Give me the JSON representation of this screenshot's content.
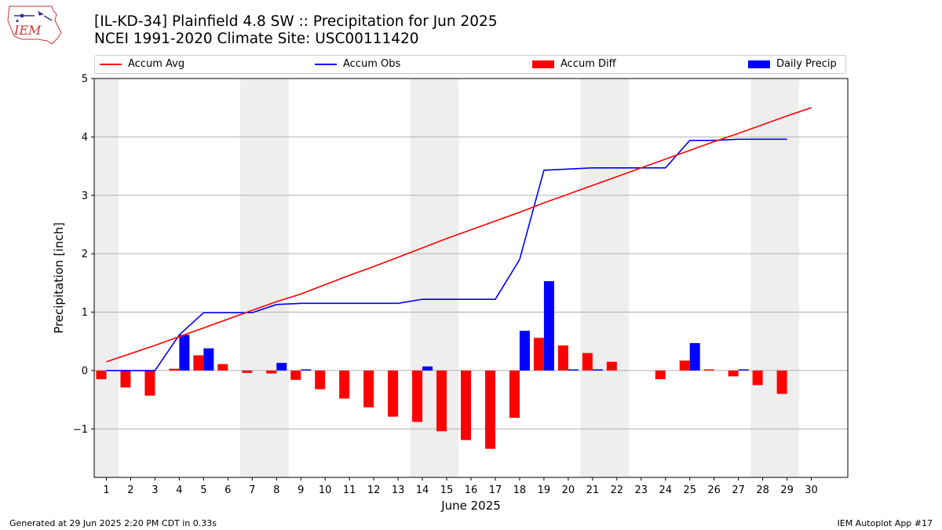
{
  "header": {
    "title_line1": "[IL-KD-34] Plainfield 4.8 SW :: Precipitation for Jun 2025",
    "title_line2": "NCEI 1991-2020 Climate Site: USC00111420"
  },
  "logo": {
    "text": "IEM"
  },
  "footer": {
    "left": "Generated at 29 Jun 2025 2:20 PM CDT in 0.33s",
    "right": "IEM Autoplot App #17"
  },
  "colors": {
    "avg": "#ff0000",
    "obs": "#0000ff",
    "diff": "#ff0000",
    "daily": "#0000ff",
    "weekend_band": "#eeeeee",
    "grid": "#b0b0b0"
  },
  "chart_data": {
    "type": "bar",
    "xlabel": "June 2025",
    "ylabel": "Precipitation [inch]",
    "xlim": [
      0.5,
      31.5
    ],
    "ylim": [
      -1.83,
      5
    ],
    "yticks": [
      -1,
      0,
      1,
      2,
      3,
      4,
      5
    ],
    "ytick_labels": [
      "−1",
      "0",
      "1",
      "2",
      "3",
      "4",
      "5"
    ],
    "xticks": [
      1,
      2,
      3,
      4,
      5,
      6,
      7,
      8,
      9,
      10,
      11,
      12,
      13,
      14,
      15,
      16,
      17,
      18,
      19,
      20,
      21,
      22,
      23,
      24,
      25,
      26,
      27,
      28,
      29,
      30
    ],
    "grid": "horizontal",
    "legend_placement": "top, above plot",
    "weekend_bands": [
      [
        0.5,
        1.5
      ],
      [
        6.5,
        8.5
      ],
      [
        13.5,
        15.5
      ],
      [
        20.5,
        22.5
      ],
      [
        27.5,
        29.5
      ]
    ],
    "legend": [
      "Accum Avg",
      "Accum Obs",
      "Accum Diff",
      "Daily Precip"
    ],
    "series": [
      {
        "name": "Accum Avg",
        "type": "line",
        "x": [
          1,
          2,
          3,
          4,
          5,
          6,
          7,
          8,
          9,
          10,
          11,
          12,
          13,
          14,
          15,
          16,
          17,
          18,
          19,
          20,
          21,
          22,
          23,
          24,
          25,
          26,
          27,
          28,
          29,
          30
        ],
        "values": [
          0.15,
          0.29,
          0.43,
          0.58,
          0.73,
          0.88,
          1.03,
          1.18,
          1.31,
          1.47,
          1.63,
          1.78,
          1.94,
          2.1,
          2.26,
          2.41,
          2.56,
          2.71,
          2.87,
          3.02,
          3.17,
          3.32,
          3.47,
          3.62,
          3.77,
          3.92,
          4.06,
          4.21,
          4.36,
          4.5
        ]
      },
      {
        "name": "Accum Obs",
        "type": "line",
        "x": [
          1,
          2,
          3,
          4,
          5,
          6,
          7,
          8,
          9,
          10,
          11,
          12,
          13,
          14,
          15,
          16,
          17,
          18,
          19,
          20,
          21,
          22,
          23,
          24,
          25,
          26,
          27,
          28,
          29
        ],
        "values": [
          0.0,
          0.0,
          0.0,
          0.61,
          0.99,
          0.99,
          0.99,
          1.13,
          1.15,
          1.15,
          1.15,
          1.15,
          1.15,
          1.22,
          1.22,
          1.22,
          1.22,
          1.9,
          3.43,
          3.45,
          3.47,
          3.47,
          3.47,
          3.47,
          3.94,
          3.94,
          3.96,
          3.96,
          3.96
        ]
      },
      {
        "name": "Accum Diff",
        "type": "bar",
        "x": [
          1,
          2,
          3,
          4,
          5,
          6,
          7,
          8,
          9,
          10,
          11,
          12,
          13,
          14,
          15,
          16,
          17,
          18,
          19,
          20,
          21,
          22,
          23,
          24,
          25,
          26,
          27,
          28,
          29
        ],
        "values": [
          -0.15,
          -0.29,
          -0.43,
          0.03,
          0.26,
          0.11,
          -0.04,
          -0.05,
          -0.16,
          -0.32,
          -0.48,
          -0.63,
          -0.79,
          -0.88,
          -1.04,
          -1.19,
          -1.34,
          -0.81,
          0.56,
          0.43,
          0.3,
          0.15,
          0.0,
          -0.15,
          0.17,
          0.02,
          -0.1,
          -0.25,
          -0.4
        ]
      },
      {
        "name": "Daily Precip",
        "type": "bar",
        "x": [
          1,
          2,
          3,
          4,
          5,
          6,
          7,
          8,
          9,
          10,
          11,
          12,
          13,
          14,
          15,
          16,
          17,
          18,
          19,
          20,
          21,
          22,
          23,
          24,
          25,
          26,
          27,
          28,
          29
        ],
        "values": [
          0,
          0,
          0,
          0.61,
          0.38,
          0,
          0,
          0.13,
          0.02,
          0,
          0,
          0,
          0,
          0.07,
          0,
          0,
          0,
          0.68,
          1.53,
          0.02,
          0.02,
          0,
          0,
          0,
          0.47,
          0,
          0.02,
          0,
          0
        ]
      }
    ]
  }
}
